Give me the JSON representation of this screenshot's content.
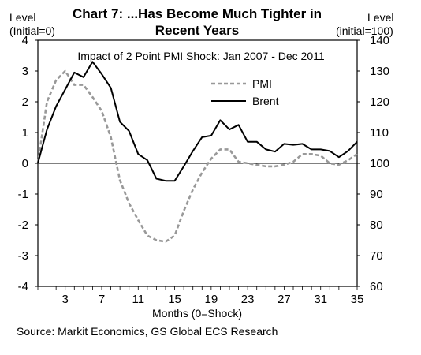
{
  "chart_data": {
    "type": "line",
    "title": "Chart 7: ...Has Become Much Tighter in Recent Years",
    "title_lines": [
      "Chart 7: ...Has Become Much Tighter in",
      "Recent Years"
    ],
    "subtitle": "Impact of 2 Point PMI Shock: Jan 2007 - Dec 2011",
    "left_axis_label": [
      "Level",
      "(Initial=0)"
    ],
    "right_axis_label": [
      "Level",
      "(initial=100)"
    ],
    "xlabel": "Months (0=Shock)",
    "source": "Source: Markit Economics, GS Global ECS Research",
    "xlim": [
      0,
      35
    ],
    "ylim_left": [
      -4,
      4
    ],
    "ylim_right": [
      60,
      140
    ],
    "x_ticks": [
      3,
      7,
      11,
      15,
      19,
      23,
      27,
      31,
      35
    ],
    "y_ticks_left": [
      -4,
      -3,
      -2,
      -1,
      0,
      1,
      2,
      3,
      4
    ],
    "y_ticks_right": [
      60,
      70,
      80,
      90,
      100,
      110,
      120,
      130,
      140
    ],
    "legend_position": "upper-right",
    "grid": false,
    "series": [
      {
        "name": "PMI",
        "axis": "left",
        "color": "#999999",
        "style": "dashed",
        "x": [
          0,
          1,
          2,
          3,
          4,
          5,
          6,
          7,
          8,
          9,
          10,
          11,
          12,
          13,
          14,
          15,
          16,
          17,
          18,
          19,
          20,
          21,
          22,
          23,
          24,
          25,
          26,
          27,
          28,
          29,
          30,
          31,
          32,
          33,
          34,
          35
        ],
        "y": [
          0.0,
          2.0,
          2.7,
          3.0,
          2.55,
          2.55,
          2.15,
          1.7,
          0.85,
          -0.55,
          -1.3,
          -1.85,
          -2.35,
          -2.5,
          -2.55,
          -2.35,
          -1.55,
          -0.85,
          -0.3,
          0.15,
          0.45,
          0.45,
          0.05,
          0.0,
          -0.05,
          -0.1,
          -0.1,
          -0.05,
          0.05,
          0.3,
          0.3,
          0.25,
          0.0,
          -0.05,
          0.1,
          0.3
        ]
      },
      {
        "name": "Brent",
        "axis": "right",
        "color": "#000000",
        "style": "solid",
        "x": [
          0,
          1,
          2,
          3,
          4,
          5,
          6,
          7,
          8,
          9,
          10,
          11,
          12,
          13,
          14,
          15,
          16,
          17,
          18,
          19,
          20,
          21,
          22,
          23,
          24,
          25,
          26,
          27,
          28,
          29,
          30,
          31,
          32,
          33,
          34,
          35
        ],
        "y": [
          100,
          111,
          118.5,
          124,
          129.5,
          128,
          133,
          129,
          124.5,
          113.5,
          110.5,
          103,
          101,
          95,
          94.3,
          94.3,
          99,
          104,
          108.5,
          109,
          114,
          111,
          112.5,
          107,
          107,
          104.5,
          103.8,
          106.3,
          106,
          106.3,
          104.5,
          104.5,
          104,
          102,
          104,
          107
        ]
      }
    ]
  }
}
